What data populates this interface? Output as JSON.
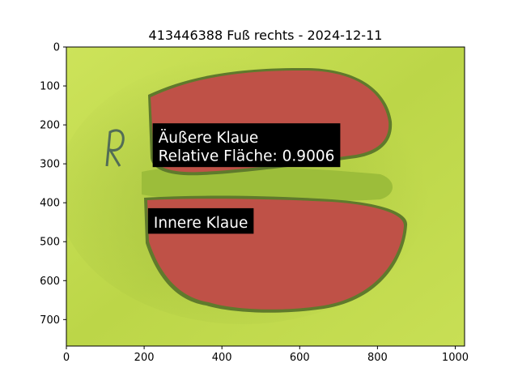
{
  "chart_data": {
    "type": "image",
    "title": "413446388 Fuß rechts - 2024-12-11",
    "xlabel": "",
    "ylabel": "",
    "xlim": [
      0,
      1024
    ],
    "ylim": [
      768,
      0
    ],
    "x_ticks": [
      0,
      200,
      400,
      600,
      800,
      1000
    ],
    "y_ticks": [
      0,
      100,
      200,
      300,
      400,
      500,
      600,
      700
    ],
    "grid": false,
    "annotations": [
      {
        "lines": [
          "Äußere Klaue",
          "Relative Fläche: 0.9006"
        ],
        "x": 222,
        "y": 196
      },
      {
        "lines": [
          "Innere Klaue"
        ],
        "x": 210,
        "y": 414
      }
    ],
    "image_description": {
      "background_color": "#c1db4c",
      "mask_color": "#cd4b4b"
    }
  }
}
